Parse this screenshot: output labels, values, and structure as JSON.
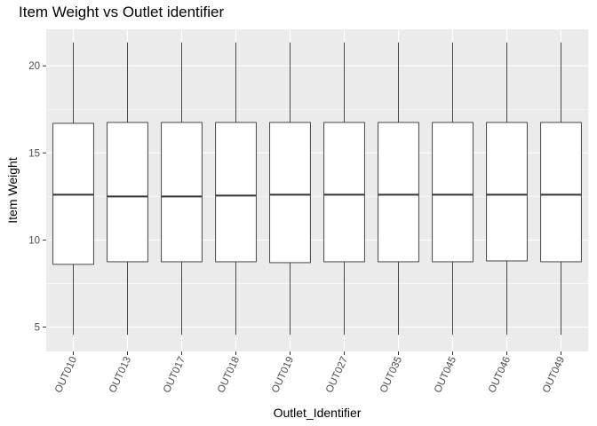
{
  "chart_data": {
    "type": "box",
    "title": "Item Weight vs Outlet identifier",
    "xlabel": "Outlet_Identifier",
    "ylabel": "Item Weight",
    "ylim": [
      3.6,
      22.1
    ],
    "yticks": [
      5,
      10,
      15,
      20
    ],
    "grid": true,
    "legend": "none",
    "colors": {
      "panel": "#ebebeb",
      "grid": "#ffffff",
      "box_fill": "#ffffff",
      "box_line": "#333333",
      "tick_text": "#4d4d4d"
    },
    "categories": [
      "OUT010",
      "OUT013",
      "OUT017",
      "OUT018",
      "OUT019",
      "OUT027",
      "OUT035",
      "OUT045",
      "OUT046",
      "OUT049"
    ],
    "boxes": [
      {
        "min": 4.555,
        "q1": 8.6,
        "median": 12.6,
        "q3": 16.7,
        "max": 21.35
      },
      {
        "min": 4.555,
        "q1": 8.75,
        "median": 12.5,
        "q3": 16.75,
        "max": 21.35
      },
      {
        "min": 4.555,
        "q1": 8.75,
        "median": 12.5,
        "q3": 16.75,
        "max": 21.35
      },
      {
        "min": 4.555,
        "q1": 8.75,
        "median": 12.55,
        "q3": 16.75,
        "max": 21.35
      },
      {
        "min": 4.555,
        "q1": 8.7,
        "median": 12.6,
        "q3": 16.75,
        "max": 21.35
      },
      {
        "min": 4.555,
        "q1": 8.75,
        "median": 12.6,
        "q3": 16.75,
        "max": 21.35
      },
      {
        "min": 4.555,
        "q1": 8.75,
        "median": 12.6,
        "q3": 16.75,
        "max": 21.35
      },
      {
        "min": 4.555,
        "q1": 8.75,
        "median": 12.6,
        "q3": 16.75,
        "max": 21.35
      },
      {
        "min": 4.555,
        "q1": 8.8,
        "median": 12.6,
        "q3": 16.75,
        "max": 21.35
      },
      {
        "min": 4.555,
        "q1": 8.75,
        "median": 12.6,
        "q3": 16.75,
        "max": 21.35
      }
    ]
  }
}
